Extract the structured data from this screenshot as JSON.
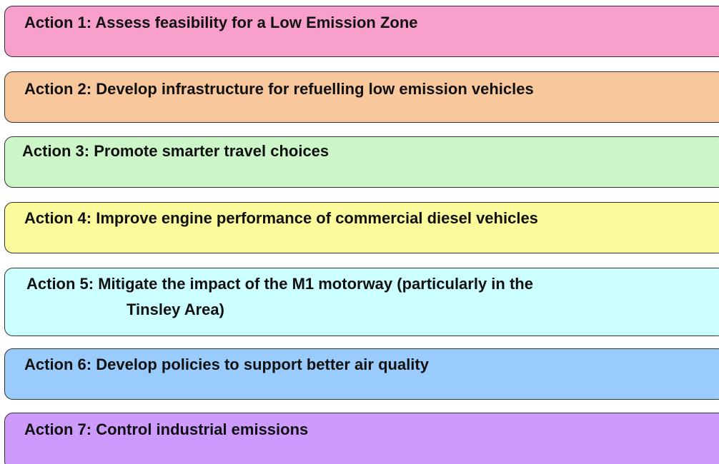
{
  "actions": [
    {
      "lines": [
        "Action 1: Assess feasibility for a Low Emission Zone"
      ],
      "color": "#f99fcb"
    },
    {
      "lines": [
        "Action 2: Develop infrastructure for refuelling low emission vehicles"
      ],
      "color": "#f9c79c"
    },
    {
      "lines": [
        "Action 3: Promote smarter travel choices"
      ],
      "color": "#ccf6c8"
    },
    {
      "lines": [
        "Action 4: Improve engine performance of commercial diesel vehicles"
      ],
      "color": "#fbfb9c"
    },
    {
      "lines": [
        "Action 5: Mitigate the impact of the M1 motorway (particularly in the",
        "Tinsley Area)"
      ],
      "color": "#ccffff"
    },
    {
      "lines": [
        "Action 6: Develop policies to support better air quality"
      ],
      "color": "#99cbfc"
    },
    {
      "lines": [
        "Action 7: Control industrial emissions"
      ],
      "color": "#cc9bfd"
    }
  ]
}
